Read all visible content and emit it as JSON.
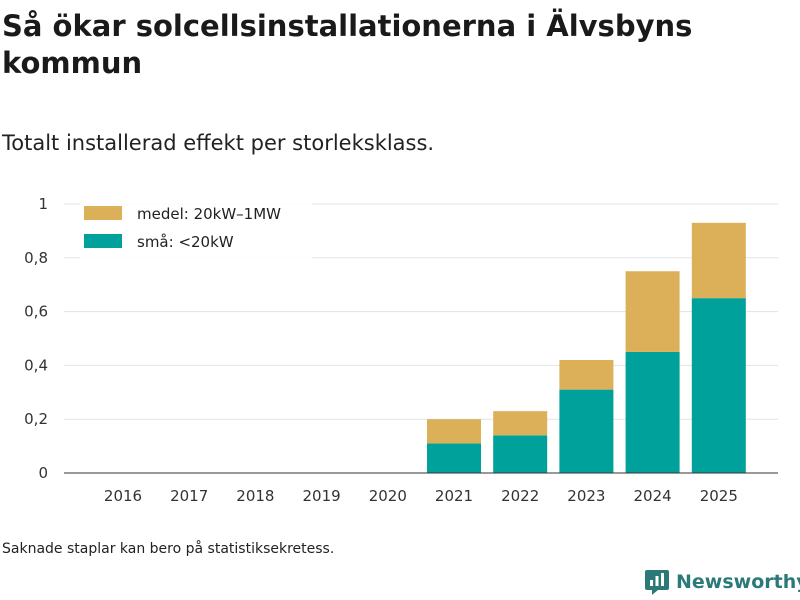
{
  "title": "Så ökar solcellsinstallationerna i Älvsbyns kommun",
  "subtitle": "Totalt installerad effekt per storleksklass.",
  "footnote": "Saknade staplar kan bero på statistiksekretess.",
  "brand": {
    "name": "Newsworthy"
  },
  "colors": {
    "small": "#00a19a",
    "medium": "#dcb058",
    "brand": "#2c7a78",
    "grid": "#e3e3e3",
    "axis": "#333333"
  },
  "chart_data": {
    "type": "bar",
    "stacked": true,
    "title": "Så ökar solcellsinstallationerna i Älvsbyns kommun",
    "xlabel": "",
    "ylabel": "",
    "ylim": [
      0,
      1
    ],
    "yticks": [
      0,
      0.2,
      0.4,
      0.6,
      0.8,
      1
    ],
    "ytick_labels": [
      "0",
      "0,2",
      "0,4",
      "0,6",
      "0,8",
      "1"
    ],
    "categories": [
      "2016",
      "2017",
      "2018",
      "2019",
      "2020",
      "2021",
      "2022",
      "2023",
      "2024",
      "2025"
    ],
    "legend_position": "top-left",
    "series": [
      {
        "name": "små: <20kW",
        "color": "#00a19a",
        "values": [
          0,
          0,
          0,
          0,
          0,
          0.11,
          0.14,
          0.31,
          0.45,
          0.65
        ]
      },
      {
        "name": "medel: 20kW–1MW",
        "color": "#dcb058",
        "values": [
          0,
          0,
          0,
          0,
          0,
          0.09,
          0.09,
          0.11,
          0.3,
          0.28
        ]
      }
    ]
  }
}
